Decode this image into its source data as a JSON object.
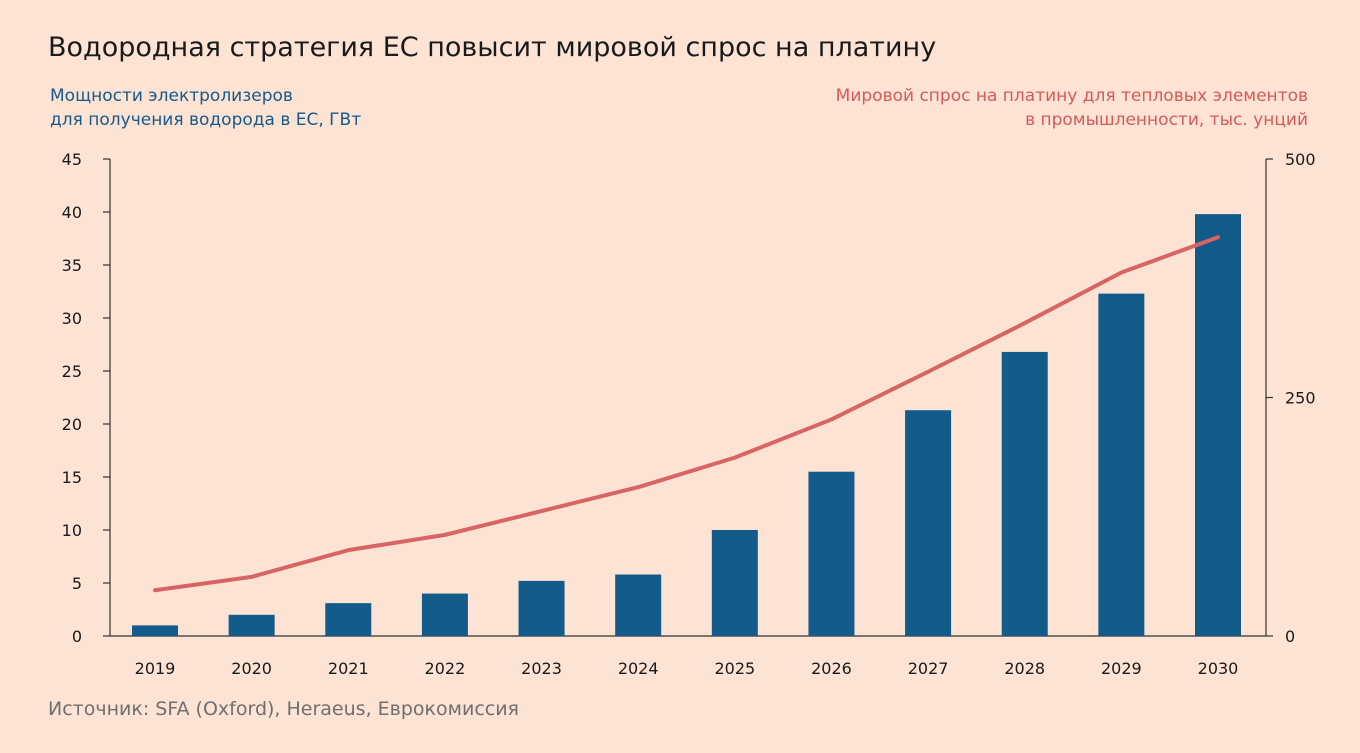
{
  "title": "Водородная стратегия ЕС повысит мировой спрос на платину",
  "left_axis_label": "Мощности электролизеров\nдля получения водорода в ЕС, ГВт",
  "right_axis_label": "Мировой спрос на платину для тепловых элементов\nв промышленности, тыс. унций",
  "source": "Источник: SFA (Oxford), Heraeus, Еврокомиссия",
  "colors": {
    "background": "#fde3d3",
    "bars": "#135b8a",
    "line": "#d86464",
    "left_label": "#17598b",
    "right_label": "#d65a5a",
    "axis": "#333333"
  },
  "chart_data": {
    "type": "bar+line",
    "categories": [
      "2019",
      "2020",
      "2021",
      "2022",
      "2023",
      "2024",
      "2025",
      "2026",
      "2027",
      "2028",
      "2029",
      "2030"
    ],
    "series": [
      {
        "type": "bar",
        "axis": "left",
        "values": [
          1,
          2,
          3.1,
          4,
          5.2,
          5.8,
          10,
          15.5,
          21.3,
          26.8,
          32.3,
          39.8
        ]
      },
      {
        "type": "line",
        "axis": "right",
        "values": [
          48,
          62,
          90,
          106,
          131,
          156,
          187,
          227,
          277,
          328,
          381,
          418
        ]
      }
    ],
    "left_axis": {
      "min": 0,
      "max": 45,
      "ticks": [
        "0",
        "5",
        "10",
        "15",
        "20",
        "25",
        "30",
        "35",
        "40",
        "45"
      ]
    },
    "right_axis": {
      "min": 0,
      "max": 500,
      "ticks": [
        "0",
        "250",
        "500"
      ]
    },
    "grid": false,
    "legend": "none"
  }
}
